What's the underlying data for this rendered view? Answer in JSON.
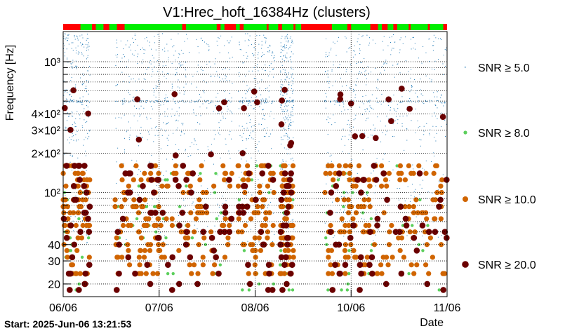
{
  "chart_data": {
    "type": "scatter",
    "title": "V1:Hrec_hoft_16384Hz (clusters)",
    "xlabel": "Date",
    "ylabel": "Frequency [Hz]",
    "y_scale": "log",
    "ylim": [
      16,
      1700
    ],
    "xlim": [
      "06/06",
      "11/06"
    ],
    "x_ticks": [
      "06/06",
      "07/06",
      "08/06",
      "10/06",
      "11/06"
    ],
    "y_ticks": [
      {
        "value": 20,
        "label": "20"
      },
      {
        "value": 30,
        "label": "30"
      },
      {
        "value": 40,
        "label": "40"
      },
      {
        "value": 100,
        "label": "10²"
      },
      {
        "value": 200,
        "label": "2×10²"
      },
      {
        "value": 300,
        "label": "3×10²"
      },
      {
        "value": 400,
        "label": "4×10²"
      },
      {
        "value": 1000,
        "label": "10³"
      }
    ],
    "start_text": "Start: 2025-Jun-06 13:21:53",
    "series": [
      {
        "name": "SNR ≥ 5.0",
        "color": "#1f77b4",
        "marker": "dot-small"
      },
      {
        "name": "SNR ≥ 8.0",
        "color": "#5ccf5c",
        "marker": "circle-small"
      },
      {
        "name": "SNR ≥ 10.0",
        "color": "#d06400",
        "marker": "circle-medium"
      },
      {
        "name": "SNR ≥ 20.0",
        "color": "#6b0000",
        "marker": "circle-large"
      }
    ],
    "bands_hz": [
      18,
      20,
      24,
      28,
      32,
      36,
      40,
      45,
      50,
      56,
      63,
      70,
      78,
      88,
      100,
      112,
      125,
      140,
      160
    ],
    "segment_bar": {
      "good_color": "#00ee00",
      "bad_color": "#ff0000",
      "bad_ranges": [
        [
          0.0,
          0.045
        ],
        [
          0.075,
          0.085
        ],
        [
          0.105,
          0.12
        ],
        [
          0.14,
          0.16
        ],
        [
          0.31,
          0.32
        ],
        [
          0.4,
          0.41
        ],
        [
          0.42,
          0.45
        ],
        [
          0.46,
          0.47
        ],
        [
          0.53,
          0.535
        ],
        [
          0.56,
          0.57
        ],
        [
          0.6,
          0.605
        ],
        [
          0.62,
          0.7
        ],
        [
          0.74,
          0.75
        ],
        [
          0.8,
          0.82
        ],
        [
          0.83,
          0.845
        ],
        [
          0.86,
          0.87
        ],
        [
          0.9,
          0.905
        ],
        [
          0.95,
          0.955
        ],
        [
          0.99,
          1.0
        ]
      ]
    },
    "active_spans": [
      [
        0.0,
        0.07
      ],
      [
        0.135,
        0.275
      ],
      [
        0.28,
        0.44
      ],
      [
        0.455,
        0.55
      ],
      [
        0.565,
        0.6
      ],
      [
        0.68,
        0.82
      ],
      [
        0.825,
        1.0
      ]
    ]
  }
}
